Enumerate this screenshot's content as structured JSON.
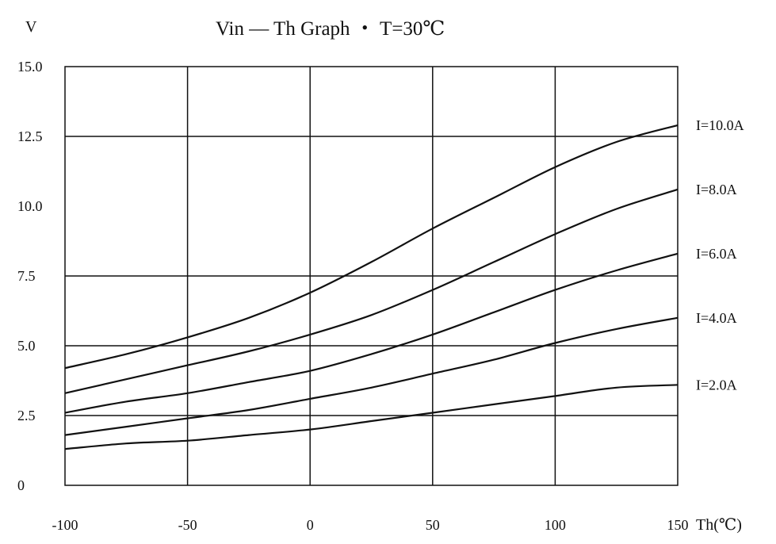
{
  "chart_data": {
    "type": "line",
    "title": "Vin — Th Graph ・ T=30℃",
    "ylabel": "V",
    "xlabel": "Th(℃)",
    "xlim": [
      -100,
      150
    ],
    "ylim": [
      0,
      15
    ],
    "x_ticks": [
      -100,
      -50,
      0,
      50,
      100,
      150
    ],
    "x_tick_labels": [
      "-100",
      "-50",
      "0",
      "50",
      "100",
      "150"
    ],
    "y_tick_labels": [
      {
        "v": 15.0,
        "label": "15.0"
      },
      {
        "v": 12.5,
        "label": "12.5"
      },
      {
        "v": 10.0,
        "label": "10.0"
      },
      {
        "v": 7.5,
        "label": "7.5"
      },
      {
        "v": 5.0,
        "label": "5.0"
      },
      {
        "v": 2.5,
        "label": "2.5"
      },
      {
        "v": 0,
        "label": "0"
      }
    ],
    "h_grid": [
      12.5,
      7.5,
      5.0,
      2.5
    ],
    "grid": true,
    "series": [
      {
        "name": "I=10.0A",
        "x": [
          -100,
          -75,
          -50,
          -25,
          0,
          25,
          50,
          75,
          100,
          125,
          150
        ],
        "y": [
          4.2,
          4.7,
          5.3,
          6.0,
          6.9,
          8.0,
          9.2,
          10.3,
          11.4,
          12.3,
          12.9
        ]
      },
      {
        "name": "I=8.0A",
        "x": [
          -100,
          -75,
          -50,
          -25,
          0,
          25,
          50,
          75,
          100,
          125,
          150
        ],
        "y": [
          3.3,
          3.8,
          4.3,
          4.8,
          5.4,
          6.1,
          7.0,
          8.0,
          9.0,
          9.9,
          10.6
        ]
      },
      {
        "name": "I=6.0A",
        "x": [
          -100,
          -75,
          -50,
          -25,
          0,
          25,
          50,
          75,
          100,
          125,
          150
        ],
        "y": [
          2.6,
          3.0,
          3.3,
          3.7,
          4.1,
          4.7,
          5.4,
          6.2,
          7.0,
          7.7,
          8.3
        ]
      },
      {
        "name": "I=4.0A",
        "x": [
          -100,
          -75,
          -50,
          -25,
          0,
          25,
          50,
          75,
          100,
          125,
          150
        ],
        "y": [
          1.8,
          2.1,
          2.4,
          2.7,
          3.1,
          3.5,
          4.0,
          4.5,
          5.1,
          5.6,
          6.0
        ]
      },
      {
        "name": "I=2.0A",
        "x": [
          -100,
          -75,
          -50,
          -25,
          0,
          25,
          50,
          75,
          100,
          125,
          150
        ],
        "y": [
          1.3,
          1.5,
          1.6,
          1.8,
          2.0,
          2.3,
          2.6,
          2.9,
          3.2,
          3.5,
          3.6
        ]
      }
    ]
  }
}
